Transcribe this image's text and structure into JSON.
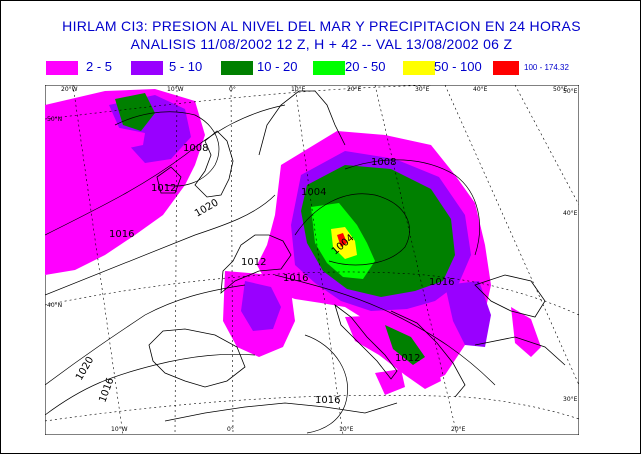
{
  "title_line1": "HIRLAM CI3:  PRESION AL NIVEL DEL MAR Y  PRECIPITACION EN 24 HORAS",
  "title_line2": "ANALISIS 11/08/2002  12 Z,  H + 42  -- VAL 13/08/2002  06 Z",
  "legend": [
    {
      "label": "2 - 5",
      "color": "#ff00ff"
    },
    {
      "label": "5 - 10",
      "color": "#9900ff"
    },
    {
      "label": "10 - 20",
      "color": "#008000"
    },
    {
      "label": "20 - 50",
      "color": "#00ff00"
    },
    {
      "label": "50 - 100",
      "color": "#ffff00"
    },
    {
      "label": "100 - 174.32",
      "color": "#ff0000"
    }
  ],
  "lon_labels_top": [
    "20°W",
    "10°W",
    "0°",
    "10°E",
    "20°E",
    "30°E",
    "40°E",
    "50°E"
  ],
  "lon_labels_bottom": [
    "10°W",
    "0°",
    "10°E",
    "20°E"
  ],
  "lat_labels_left": [
    "50°N",
    "40°N"
  ],
  "lat_labels_right": [
    "50°E",
    "40°E",
    "30°E"
  ],
  "isobar_labels": [
    "1008",
    "1012",
    "1016",
    "1020",
    "1016",
    "1016",
    "1004",
    "1004",
    "1008",
    "1012",
    "1012",
    "1020",
    "1016",
    "1016"
  ]
}
